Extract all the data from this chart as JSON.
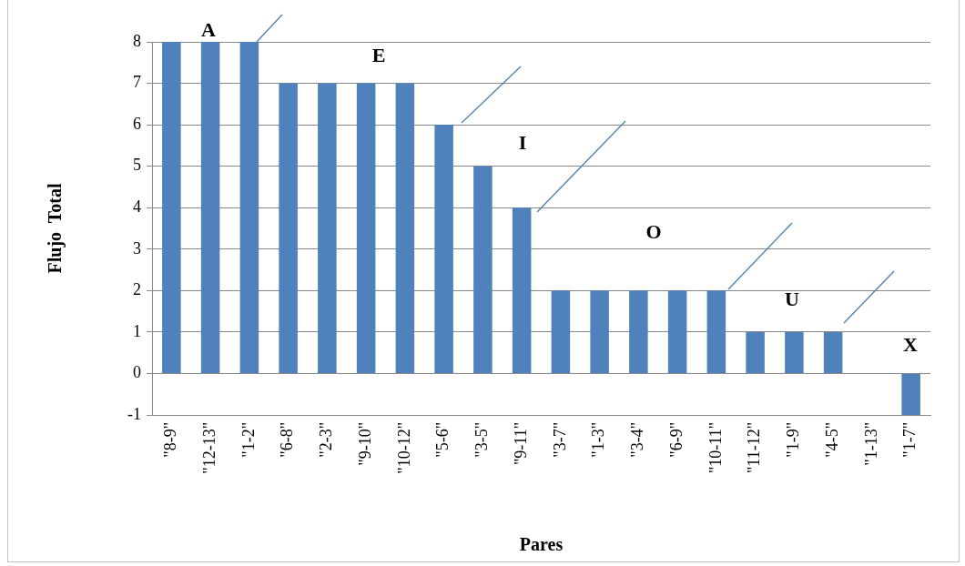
{
  "chart_data": {
    "type": "bar",
    "xlabel": "Pares",
    "ylabel": "Flujo  Total",
    "categories": [
      "\"8-9\"",
      "\"12-13\"",
      "\"1-2\"",
      "\"6-8\"",
      "\"2-3\"",
      "\"9-10\"",
      "\"10-12\"",
      "\"5-6\"",
      "\"3-5\"",
      "\"9-11\"",
      "\"3-7\"",
      "\"1-3\"",
      "\"3-4\"",
      "\"6-9\"",
      "\"10-11\"",
      "\"11-12\"",
      "\"1-9\"",
      "\"4-5\"",
      "\"1-13\"",
      "\"1-7\""
    ],
    "values": [
      8,
      8,
      8,
      7,
      7,
      7,
      7,
      6,
      5,
      4,
      2,
      2,
      2,
      2,
      2,
      1,
      1,
      1,
      0,
      -1
    ],
    "color": "#4f81bd",
    "ylim": [
      -1,
      8
    ],
    "yticks": [
      -1,
      0,
      1,
      2,
      3,
      4,
      5,
      6,
      7,
      8
    ],
    "grid": "y",
    "annotations": [
      "A",
      "E",
      "I",
      "O",
      "U",
      "X"
    ]
  }
}
